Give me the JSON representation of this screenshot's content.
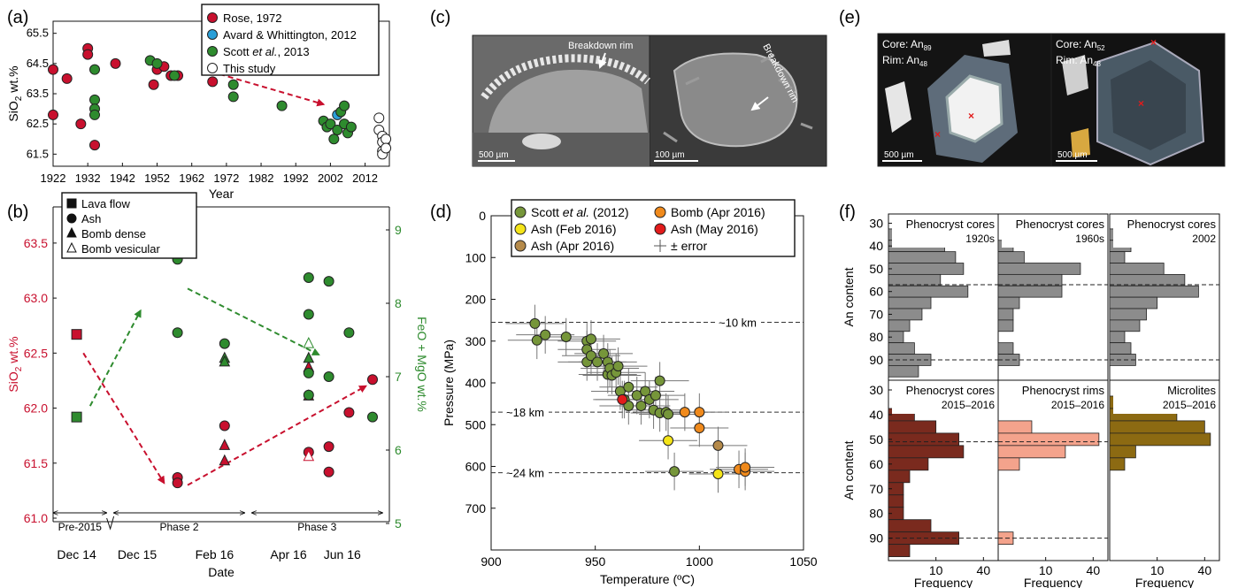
{
  "panels": {
    "a": {
      "label": "(a)"
    },
    "b": {
      "label": "(b)"
    },
    "c": {
      "label": "(c)"
    },
    "d": {
      "label": "(d)"
    },
    "e": {
      "label": "(e)"
    },
    "f": {
      "label": "(f)"
    }
  },
  "colors": {
    "rose": "#c8102e",
    "avard": "#2a9fd8",
    "scott": "#2e8b2e",
    "scott_d": "#76963a",
    "ash_feb": "#f4e418",
    "ash_apr": "#b58a4a",
    "bomb_apr": "#f08a1c",
    "ash_may": "#e21b1b",
    "grey": "#8c8c8c",
    "core1516": "#7a2a1e",
    "rim1516": "#f4a38c",
    "micro1516": "#8c6a12"
  },
  "c": {
    "labels": [
      "Breakdown rim",
      "Breakdown rim"
    ],
    "scales": [
      "500 µm",
      "100 µm"
    ]
  },
  "e": {
    "left": {
      "core": "Core: An",
      "core_sub": "89",
      "rim": "Rim: An",
      "rim_sub": "48",
      "scale": "500 µm"
    },
    "right": {
      "core": "Core: An",
      "core_sub": "52",
      "rim": "Rim: An",
      "rim_sub": "48",
      "scale": "500 µm"
    }
  },
  "chart_data": [
    {
      "panel": "a",
      "type": "scatter",
      "xlabel": "Year",
      "ylabel": "SiO2 wt.%",
      "ylabel_parts": [
        "SiO",
        "2",
        " wt.%"
      ],
      "xlim": [
        1922,
        2019
      ],
      "ylim": [
        61.1,
        65.9
      ],
      "xticks": [
        1922,
        1932,
        1942,
        1952,
        1962,
        1972,
        1982,
        1992,
        2002,
        2012
      ],
      "yticks": [
        61.5,
        62.5,
        63.5,
        64.5,
        65.5
      ],
      "legend_placement": "top",
      "series": [
        {
          "name": "Rose, 1972",
          "color": "#c8102e",
          "points": [
            [
              1922,
              64.3
            ],
            [
              1922,
              62.8
            ],
            [
              1926,
              64.0
            ],
            [
              1930,
              62.5
            ],
            [
              1932,
              65.0
            ],
            [
              1932,
              64.8
            ],
            [
              1934,
              61.8
            ],
            [
              1940,
              64.5
            ],
            [
              1951,
              63.8
            ],
            [
              1952,
              64.3
            ],
            [
              1954,
              64.4
            ],
            [
              1956,
              64.1
            ],
            [
              1958,
              64.1
            ],
            [
              1968,
              63.9
            ]
          ]
        },
        {
          "name": "Avard & Whittington, 2012",
          "color": "#2a9fd8",
          "points": [
            [
              2004,
              62.8
            ]
          ]
        },
        {
          "name": "Scott et al., 2013",
          "name_parts": [
            "Scott ",
            "et al.",
            ", 2013"
          ],
          "color": "#2e8b2e",
          "points": [
            [
              1934,
              64.3
            ],
            [
              1934,
              63.3
            ],
            [
              1934,
              63.0
            ],
            [
              1934,
              62.8
            ],
            [
              1950,
              64.6
            ],
            [
              1952,
              64.5
            ],
            [
              1957,
              64.1
            ],
            [
              1974,
              63.8
            ],
            [
              1974,
              63.4
            ],
            [
              1988,
              63.1
            ],
            [
              2000,
              62.6
            ],
            [
              2001,
              62.4
            ],
            [
              2002,
              62.5
            ],
            [
              2003,
              62.0
            ],
            [
              2004,
              62.3
            ],
            [
              2005,
              62.9
            ],
            [
              2006,
              62.5
            ],
            [
              2006,
              63.1
            ],
            [
              2007,
              62.2
            ],
            [
              2008,
              62.4
            ]
          ]
        },
        {
          "name": "This study",
          "color": "#ffffff",
          "points": [
            [
              2016,
              62.7
            ],
            [
              2016,
              62.3
            ],
            [
              2017,
              62.1
            ],
            [
              2017,
              61.9
            ],
            [
              2017,
              61.6
            ],
            [
              2017,
              61.5
            ],
            [
              2018,
              62.0
            ],
            [
              2018,
              61.7
            ]
          ]
        }
      ]
    },
    {
      "panel": "b",
      "type": "scatter",
      "xlabel": "Date",
      "ylabel_left": "SiO2 wt.%",
      "ylabel_left_parts": [
        "SiO",
        "2",
        " wt.%"
      ],
      "ylabel_right": "FeO + MgO wt.%",
      "ylim_left": [
        61.0,
        63.7
      ],
      "yticks_left": [
        61.0,
        61.5,
        62.0,
        62.5,
        63.0,
        63.5
      ],
      "ylim_right": [
        5,
        9
      ],
      "yticks_right": [
        5,
        6,
        7,
        8,
        9
      ],
      "xlim": [
        0,
        10
      ],
      "xticks": [
        {
          "x": 0.7,
          "label": "Dec 14"
        },
        {
          "x": 2.5,
          "label": "Dec 15"
        },
        {
          "x": 4.8,
          "label": "Feb 16"
        },
        {
          "x": 7.0,
          "label": "Apr 16"
        },
        {
          "x": 8.6,
          "label": "Jun 16"
        }
      ],
      "phases": [
        {
          "label": "Pre-2015",
          "from": 0,
          "to": 1.7
        },
        {
          "label": "Phase 2",
          "from": 1.7,
          "to": 5.8
        },
        {
          "label": "Phase 3",
          "from": 5.8,
          "to": 9.9
        }
      ],
      "legend": [
        "Lava flow",
        "Ash",
        "Bomb dense",
        "Bomb vesicular"
      ],
      "legend_placement": "top-left",
      "series": [
        {
          "name": "SiO2",
          "axis": "left",
          "color": "#c8102e",
          "points": [
            {
              "x": 0.7,
              "y": 62.67,
              "m": "square"
            },
            {
              "x": 3.7,
              "y": 61.37,
              "m": "circle"
            },
            {
              "x": 3.7,
              "y": 61.32,
              "m": "circle"
            },
            {
              "x": 5.1,
              "y": 61.84,
              "m": "circle"
            },
            {
              "x": 5.1,
              "y": 61.66,
              "m": "triangle"
            },
            {
              "x": 5.1,
              "y": 61.52,
              "m": "triangle"
            },
            {
              "x": 7.6,
              "y": 62.37,
              "m": "triangle"
            },
            {
              "x": 7.6,
              "y": 62.11,
              "m": "triangle"
            },
            {
              "x": 7.6,
              "y": 61.6,
              "m": "circle"
            },
            {
              "x": 7.6,
              "y": 61.56,
              "m": "triangle-open"
            },
            {
              "x": 8.2,
              "y": 61.65,
              "m": "circle"
            },
            {
              "x": 8.2,
              "y": 61.42,
              "m": "circle"
            },
            {
              "x": 8.8,
              "y": 61.96,
              "m": "circle"
            },
            {
              "x": 9.5,
              "y": 62.26,
              "m": "circle"
            }
          ]
        },
        {
          "name": "FeO + MgO",
          "axis": "right",
          "color": "#2e8b2e",
          "points": [
            {
              "x": 0.7,
              "y": 6.45,
              "m": "square"
            },
            {
              "x": 3.7,
              "y": 8.6,
              "m": "circle"
            },
            {
              "x": 3.7,
              "y": 7.6,
              "m": "circle"
            },
            {
              "x": 5.1,
              "y": 7.45,
              "m": "circle"
            },
            {
              "x": 5.1,
              "y": 7.25,
              "m": "triangle"
            },
            {
              "x": 5.1,
              "y": 7.2,
              "m": "triangle"
            },
            {
              "x": 7.6,
              "y": 8.35,
              "m": "circle"
            },
            {
              "x": 7.6,
              "y": 7.85,
              "m": "circle"
            },
            {
              "x": 7.6,
              "y": 7.45,
              "m": "triangle-open"
            },
            {
              "x": 7.6,
              "y": 7.25,
              "m": "triangle"
            },
            {
              "x": 7.6,
              "y": 7.05,
              "m": "circle"
            },
            {
              "x": 7.6,
              "y": 6.75,
              "m": "circle"
            },
            {
              "x": 8.2,
              "y": 8.3,
              "m": "circle"
            },
            {
              "x": 8.2,
              "y": 7.0,
              "m": "circle"
            },
            {
              "x": 8.8,
              "y": 7.6,
              "m": "circle"
            },
            {
              "x": 9.5,
              "y": 6.45,
              "m": "circle"
            }
          ]
        }
      ],
      "arrows": [
        {
          "axis": "left",
          "from": [
            0.9,
            62.5
          ],
          "to": [
            3.3,
            61.32
          ],
          "color": "#c8102e"
        },
        {
          "axis": "left",
          "from": [
            4.0,
            61.3
          ],
          "to": [
            9.3,
            62.2
          ],
          "color": "#c8102e"
        },
        {
          "axis": "right",
          "from": [
            1.1,
            6.6
          ],
          "to": [
            2.6,
            7.9
          ],
          "color": "#2e8b2e"
        },
        {
          "axis": "right",
          "from": [
            4.0,
            8.2
          ],
          "to": [
            7.9,
            7.3
          ],
          "color": "#2e8b2e"
        }
      ]
    },
    {
      "panel": "d",
      "type": "scatter",
      "xlabel": "Temperature (ºC)",
      "ylabel": "Pressure (MPa)",
      "xlim": [
        900,
        1050
      ],
      "ylim": [
        0,
        800
      ],
      "y_inverted": true,
      "xticks": [
        900,
        950,
        1000,
        1050
      ],
      "yticks": [
        0,
        100,
        200,
        300,
        400,
        500,
        600,
        700
      ],
      "depth_lines": [
        {
          "y": 255,
          "label": "~10 km"
        },
        {
          "y": 470,
          "label": "~18 km"
        },
        {
          "y": 615,
          "label": "~24 km"
        }
      ],
      "legend": [
        "Scott et al. (2012)",
        "Ash (Feb 2016)",
        "Ash (Apr 2016)",
        "Bomb (Apr 2016)",
        "Ash (May 2016)",
        "± error"
      ],
      "legend_placement": "top",
      "error": {
        "x": 14,
        "y": 45
      },
      "series": [
        {
          "name": "Scott et al. (2012)",
          "name_parts": [
            "Scott ",
            "et al.",
            " (2012)"
          ],
          "color": "#76963a",
          "points": [
            [
              921,
              258
            ],
            [
              922,
              298
            ],
            [
              926,
              285
            ],
            [
              936,
              290
            ],
            [
              946,
              300
            ],
            [
              946,
              320
            ],
            [
              946,
              350
            ],
            [
              948,
              295
            ],
            [
              948,
              335
            ],
            [
              951,
              350
            ],
            [
              954,
              330
            ],
            [
              956,
              350
            ],
            [
              956,
              380
            ],
            [
              957,
              365
            ],
            [
              958,
              382
            ],
            [
              960,
              375
            ],
            [
              961,
              360
            ],
            [
              962,
              420
            ],
            [
              964,
              440
            ],
            [
              966,
              410
            ],
            [
              966,
              455
            ],
            [
              970,
              430
            ],
            [
              972,
              455
            ],
            [
              974,
              420
            ],
            [
              976,
              440
            ],
            [
              978,
              465
            ],
            [
              979,
              430
            ],
            [
              981,
              472
            ],
            [
              981,
              395
            ],
            [
              984,
              470
            ],
            [
              985,
              475
            ],
            [
              988,
              612
            ]
          ]
        },
        {
          "name": "Ash (Feb 2016)",
          "color": "#f4e418",
          "points": [
            [
              985,
              538
            ],
            [
              1009,
              618
            ]
          ]
        },
        {
          "name": "Ash (Apr 2016)",
          "color": "#b58a4a",
          "points": [
            [
              1009,
              550
            ]
          ]
        },
        {
          "name": "Bomb (Apr 2016)",
          "color": "#f08a1c",
          "points": [
            [
              993,
              470
            ],
            [
              1000,
              508
            ],
            [
              1000,
              470
            ],
            [
              1019,
              607
            ],
            [
              1022,
              612
            ],
            [
              1022,
              602
            ]
          ]
        },
        {
          "name": "Ash (May 2016)",
          "color": "#e21b1b",
          "points": [
            [
              963,
              440
            ]
          ]
        }
      ]
    },
    {
      "panel": "f",
      "type": "bar",
      "orientation": "horizontal",
      "xlabel": "Frequency",
      "ylabel": "An content",
      "bins": [
        30,
        35,
        40,
        45,
        50,
        55,
        60,
        65,
        70,
        75,
        80,
        85,
        90,
        95
      ],
      "yticks": [
        30,
        40,
        50,
        60,
        70,
        80,
        90
      ],
      "xscale": "sqrt",
      "xticks": [
        10,
        40
      ],
      "subplots": [
        {
          "title": "Phenocryst cores",
          "subtitle": "1920s",
          "color": "#8c8c8c",
          "values": [
            0,
            4,
            14,
            20,
            25,
            12,
            28,
            8,
            5,
            2,
            1,
            3,
            8,
            4
          ],
          "dashed": [
            57,
            90
          ]
        },
        {
          "title": "Phenocryst cores",
          "subtitle": "1960s",
          "color": "#8c8c8c",
          "values": [
            0,
            0,
            1,
            3,
            30,
            18,
            18,
            2,
            1,
            1,
            0,
            1,
            2,
            0
          ],
          "dashed": [
            57,
            90
          ]
        },
        {
          "title": "Phenocryst cores",
          "subtitle": "2002",
          "color": "#8c8c8c",
          "values": [
            0,
            2,
            2,
            1,
            13,
            25,
            35,
            10,
            6,
            4,
            1,
            2,
            3,
            0
          ],
          "dashed": [
            57,
            90
          ]
        },
        {
          "title": "Phenocryst cores",
          "subtitle": "2015–2016",
          "color": "#7a2a1e",
          "values": [
            0,
            0,
            3,
            10,
            22,
            25,
            7,
            2,
            1,
            1,
            1,
            8,
            22,
            2
          ],
          "dashed": [
            51,
            90
          ]
        },
        {
          "title": "Phenocryst rims",
          "subtitle": "2015–2016",
          "color": "#f4a38c",
          "values": [
            0,
            0,
            0,
            5,
            45,
            20,
            2,
            0,
            0,
            0,
            0,
            0,
            1,
            0
          ],
          "dashed": [
            51,
            90
          ]
        },
        {
          "title": "Microlites",
          "subtitle": "2015–2016",
          "color": "#8c6a12",
          "values": [
            0,
            1,
            20,
            40,
            45,
            3,
            1,
            0,
            0,
            0,
            0,
            0,
            0,
            0
          ],
          "dashed": []
        }
      ]
    }
  ]
}
